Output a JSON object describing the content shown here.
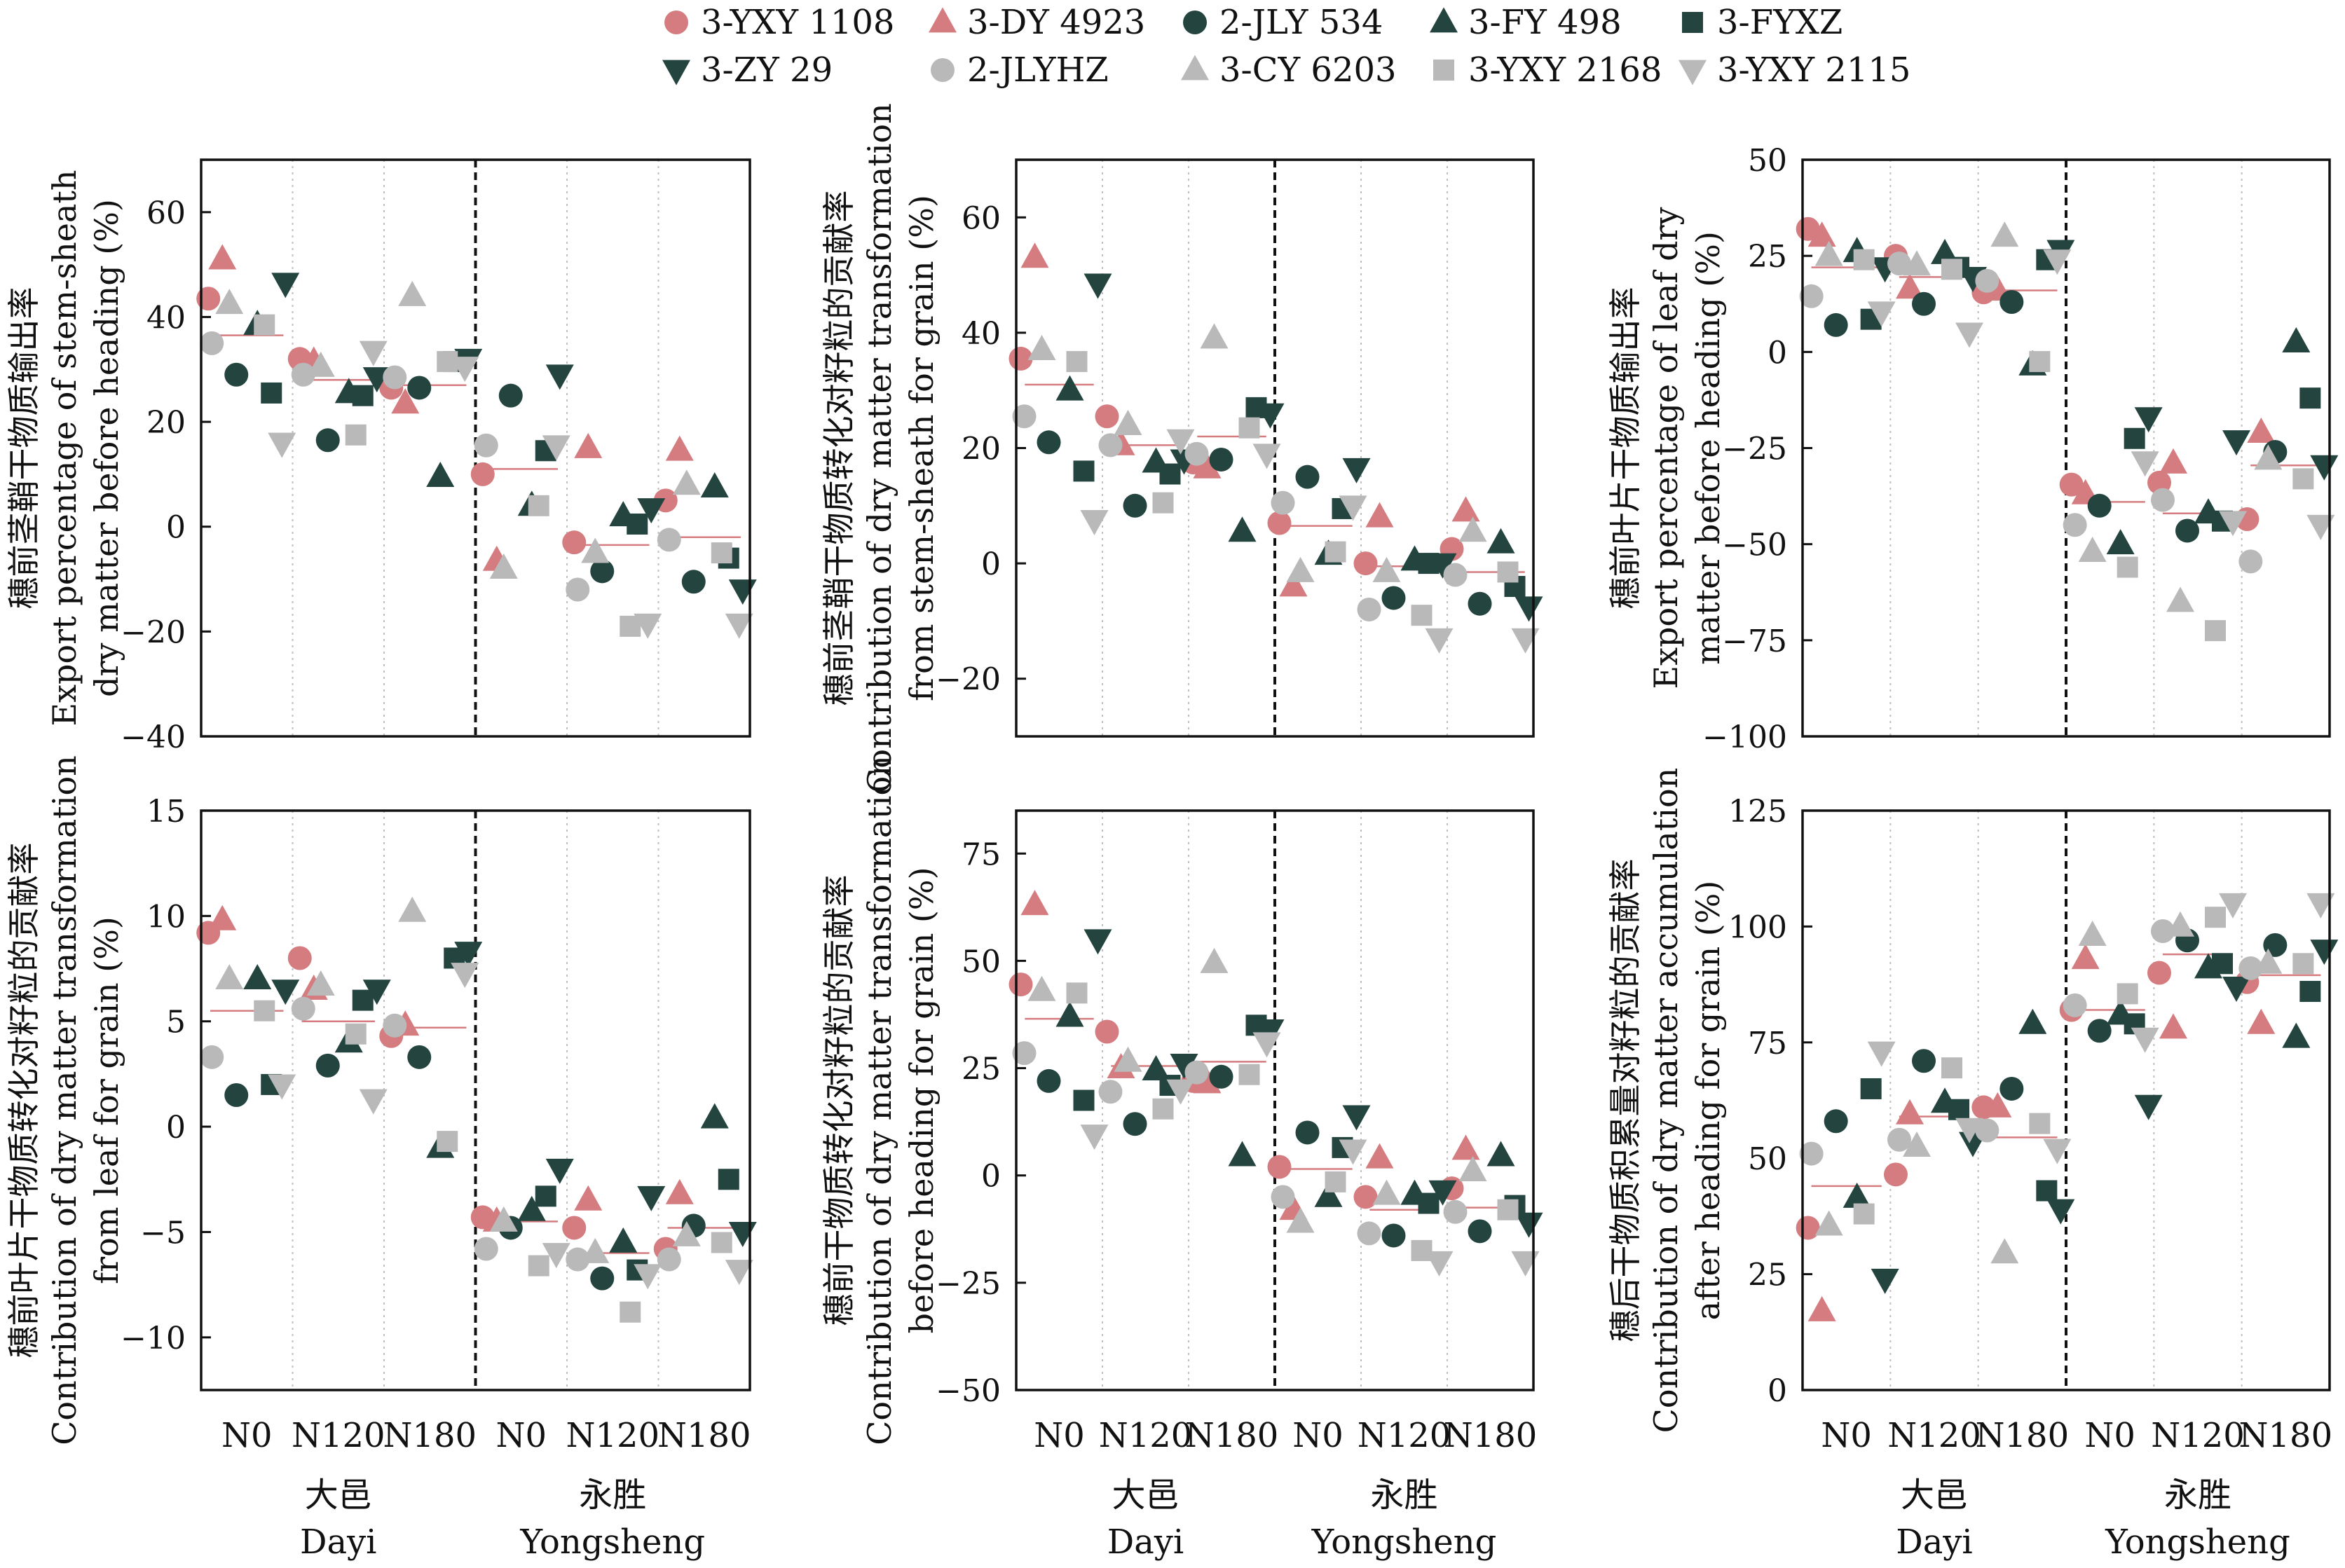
{
  "colors": {
    "pink": "#d47c7f",
    "dark": "#24443f",
    "gray": "#b9b9b9",
    "mean_line": "#d47c7f",
    "frame": "#111111",
    "grid": "#bfbfbf"
  },
  "legend": {
    "placement": "top",
    "entries": [
      {
        "name": "3-YXY 1108",
        "marker": "circle",
        "color": "pink"
      },
      {
        "name": "3-DY 4923",
        "marker": "triangle-up",
        "color": "pink"
      },
      {
        "name": "2-JLY 534",
        "marker": "circle",
        "color": "dark"
      },
      {
        "name": "3-FY 498",
        "marker": "triangle-up",
        "color": "dark"
      },
      {
        "name": "3-FYXZ",
        "marker": "square",
        "color": "dark"
      },
      {
        "name": "3-ZY 29",
        "marker": "triangle-down",
        "color": "dark"
      },
      {
        "name": "2-JLYHZ",
        "marker": "circle",
        "color": "gray"
      },
      {
        "name": "3-CY 6203",
        "marker": "triangle-up",
        "color": "gray"
      },
      {
        "name": "3-YXY 2168",
        "marker": "square",
        "color": "gray"
      },
      {
        "name": "3-YXY 2115",
        "marker": "triangle-down",
        "color": "gray"
      }
    ]
  },
  "x_axis": {
    "categories": [
      "N0",
      "N120",
      "N180",
      "N0",
      "N120",
      "N180"
    ],
    "sites": [
      {
        "cn": "大邑",
        "en": "Dayi"
      },
      {
        "cn": "永胜",
        "en": "Yongsheng"
      }
    ]
  },
  "chart_data": [
    {
      "type": "scatter",
      "ylabel_cn": "穗前茎鞘干物质输出率",
      "ylabel_en_1": "Export percentage of stem-sheath",
      "ylabel_en_2": "dry matter before heading (%)",
      "ylim": [
        -40,
        70
      ],
      "yticks": [
        -40,
        -20,
        0,
        20,
        40,
        60
      ],
      "ytick_labels": [
        "−40",
        "−20",
        "0",
        "20",
        "40",
        "60"
      ],
      "means": [
        36.5,
        28,
        27,
        11,
        -3.5,
        -2
      ],
      "series": [
        {
          "name": "3-YXY 1108",
          "values": [
            43.5,
            32,
            26.5,
            10,
            -3,
            5
          ]
        },
        {
          "name": "3-DY 4923",
          "values": [
            51,
            31.5,
            23.5,
            -6.5,
            15,
            14.5
          ]
        },
        {
          "name": "2-JLY 534",
          "values": [
            29,
            16.5,
            26.5,
            25,
            -8.5,
            -10.5
          ]
        },
        {
          "name": "3-FY 498",
          "values": [
            38.5,
            25.5,
            9.5,
            4,
            2,
            7.5
          ]
        },
        {
          "name": "3-FYXZ",
          "values": [
            25.5,
            25,
            31.5,
            14.5,
            0.5,
            -6
          ]
        },
        {
          "name": "3-ZY 29",
          "values": [
            46.5,
            28.5,
            32,
            29,
            3.5,
            -12
          ]
        },
        {
          "name": "2-JLYHZ",
          "values": [
            35,
            29,
            28.5,
            15.5,
            -12,
            -2.5
          ]
        },
        {
          "name": "3-CY 6203",
          "values": [
            42.5,
            30.5,
            44,
            -8,
            -5,
            8
          ]
        },
        {
          "name": "3-YXY 2168",
          "values": [
            38.5,
            17.5,
            31.5,
            4,
            -19,
            -5
          ]
        },
        {
          "name": "3-YXY 2115",
          "values": [
            16,
            33.5,
            30.5,
            15.5,
            -18.5,
            -18.5
          ]
        }
      ]
    },
    {
      "type": "scatter",
      "ylabel_cn": "穗前茎鞘干物质转化对籽粒的贡献率",
      "ylabel_en_1": "Contribution of dry matter transformation",
      "ylabel_en_2": "from stem-sheath for grain (%)",
      "ylim": [
        -30,
        70
      ],
      "yticks": [
        -20,
        0,
        20,
        40,
        60
      ],
      "ytick_labels": [
        "−20",
        "0",
        "20",
        "40",
        "60"
      ],
      "means": [
        31,
        20.5,
        22,
        6.5,
        -0.5,
        -1.5
      ],
      "series": [
        {
          "name": "3-YXY 1108",
          "values": [
            35.5,
            25.5,
            17.5,
            7,
            0,
            2.5
          ]
        },
        {
          "name": "3-DY 4923",
          "values": [
            53,
            20.5,
            16.5,
            -4,
            8,
            9
          ]
        },
        {
          "name": "2-JLY 534",
          "values": [
            21,
            10,
            18,
            15,
            -6,
            -7
          ]
        },
        {
          "name": "3-FY 498",
          "values": [
            30,
            17.5,
            5.5,
            1.5,
            0.5,
            3.5
          ]
        },
        {
          "name": "3-FYXZ",
          "values": [
            16,
            15.5,
            27,
            9.5,
            0,
            -4
          ]
        },
        {
          "name": "3-ZY 29",
          "values": [
            48.5,
            18,
            26,
            16.5,
            0,
            -7.5
          ]
        },
        {
          "name": "2-JLYHZ",
          "values": [
            25.5,
            20.5,
            19,
            10.5,
            -8,
            -2
          ]
        },
        {
          "name": "3-CY 6203",
          "values": [
            37,
            24,
            39,
            -1.5,
            -1.5,
            5.5
          ]
        },
        {
          "name": "3-YXY 2168",
          "values": [
            35,
            10.5,
            23.5,
            2,
            -9,
            -1.5
          ]
        },
        {
          "name": "3-YXY 2115",
          "values": [
            7.5,
            21.5,
            19,
            10,
            -13,
            -13
          ]
        }
      ]
    },
    {
      "type": "scatter",
      "ylabel_cn": "穗前叶片干物质输出率",
      "ylabel_en_1": "Export percentage of leaf dry",
      "ylabel_en_2": "matter before heading (%)",
      "ylim": [
        -100,
        50
      ],
      "yticks": [
        -100,
        -75,
        -50,
        -25,
        0,
        25,
        50
      ],
      "ytick_labels": [
        "−100",
        "−75",
        "−50",
        "−25",
        "0",
        "25",
        "50"
      ],
      "means": [
        22,
        19.5,
        16,
        -39,
        -42,
        -29.5
      ],
      "series": [
        {
          "name": "3-YXY 1108",
          "values": [
            32,
            25,
            15.5,
            -34.5,
            -34,
            -43.5
          ]
        },
        {
          "name": "3-DY 4923",
          "values": [
            30,
            16.5,
            16,
            -37,
            -29,
            -21
          ]
        },
        {
          "name": "2-JLY 534",
          "values": [
            7,
            12.5,
            13,
            -40,
            -46.5,
            -26
          ]
        },
        {
          "name": "3-FY 498",
          "values": [
            26,
            25.5,
            -3.5,
            -50,
            -42,
            2.5
          ]
        },
        {
          "name": "3-FYXZ",
          "values": [
            8.5,
            22,
            24,
            -22.5,
            -44,
            -12
          ]
        },
        {
          "name": "3-ZY 29",
          "values": [
            22,
            19.5,
            26.5,
            -17,
            -23,
            -29.5
          ]
        },
        {
          "name": "2-JLYHZ",
          "values": [
            14.5,
            23,
            18.5,
            -45,
            -38.5,
            -54.5
          ]
        },
        {
          "name": "3-CY 6203",
          "values": [
            25,
            22.5,
            30,
            -52,
            -65,
            -28
          ]
        },
        {
          "name": "3-YXY 2168",
          "values": [
            24,
            21.5,
            -2.5,
            -56,
            -72.5,
            -33
          ]
        },
        {
          "name": "3-YXY 2115",
          "values": [
            10.5,
            5,
            24,
            -28.5,
            -44,
            -45
          ]
        }
      ]
    },
    {
      "type": "scatter",
      "ylabel_cn": "穗前叶片干物质转化对籽粒的贡献率",
      "ylabel_en_1": "Contribution of dry matter transformation",
      "ylabel_en_2": "from leaf for grain (%)",
      "ylim": [
        -12.5,
        15
      ],
      "yticks": [
        -10,
        -5,
        0,
        5,
        10,
        15
      ],
      "ytick_labels": [
        "−10",
        "−5",
        "0",
        "5",
        "10",
        "15"
      ],
      "means": [
        5.5,
        5,
        4.7,
        -4.5,
        -6,
        -4.8
      ],
      "series": [
        {
          "name": "3-YXY 1108",
          "values": [
            9.2,
            8,
            4.3,
            -4.3,
            -4.8,
            -5.8
          ]
        },
        {
          "name": "3-DY 4923",
          "values": [
            9.8,
            6.5,
            4.8,
            -4.5,
            -3.5,
            -3.2
          ]
        },
        {
          "name": "2-JLY 534",
          "values": [
            1.5,
            2.9,
            3.3,
            -4.8,
            -7.2,
            -4.7
          ]
        },
        {
          "name": "3-FY 498",
          "values": [
            7,
            4,
            -1,
            -4,
            -5.5,
            0.4
          ]
        },
        {
          "name": "3-FYXZ",
          "values": [
            2,
            6,
            8,
            -3.3,
            -6.8,
            -2.5
          ]
        },
        {
          "name": "3-ZY 29",
          "values": [
            6.5,
            6.5,
            8.3,
            -2,
            -3.3,
            -5
          ]
        },
        {
          "name": "2-JLYHZ",
          "values": [
            3.3,
            5.6,
            4.8,
            -5.8,
            -6.3,
            -6.3
          ]
        },
        {
          "name": "3-CY 6203",
          "values": [
            7,
            6.7,
            10.2,
            -4.5,
            -6,
            -5.2
          ]
        },
        {
          "name": "3-YXY 2168",
          "values": [
            5.5,
            4.4,
            -0.7,
            -6.6,
            -8.8,
            -5.5
          ]
        },
        {
          "name": "3-YXY 2115",
          "values": [
            2,
            1.3,
            7.3,
            -6,
            -7,
            -6.8
          ]
        }
      ]
    },
    {
      "type": "scatter",
      "ylabel_cn": "穗前干物质转化对籽粒的贡献率",
      "ylabel_en_1": "Contribution of dry matter transformation",
      "ylabel_en_2": "before heading for grain (%)",
      "ylim": [
        -50,
        85
      ],
      "yticks": [
        -50,
        -25,
        0,
        25,
        50,
        75
      ],
      "ytick_labels": [
        "−50",
        "−25",
        "0",
        "25",
        "50",
        "75"
      ],
      "means": [
        36.5,
        25.5,
        26.5,
        1.5,
        -8,
        -7.5
      ],
      "series": [
        {
          "name": "3-YXY 1108",
          "values": [
            44.5,
            33.5,
            22,
            2,
            -5,
            -3
          ]
        },
        {
          "name": "3-DY 4923",
          "values": [
            63,
            25,
            21.5,
            -8,
            4,
            6
          ]
        },
        {
          "name": "2-JLY 534",
          "values": [
            22,
            12,
            23,
            10,
            -14,
            -13
          ]
        },
        {
          "name": "3-FY 498",
          "values": [
            37,
            24.5,
            4.5,
            -5,
            -4.5,
            4.5
          ]
        },
        {
          "name": "3-FYXZ",
          "values": [
            17.5,
            21,
            35,
            6.5,
            -6.5,
            -7
          ]
        },
        {
          "name": "3-ZY 29",
          "values": [
            55,
            26,
            34,
            14,
            -3.5,
            -11
          ]
        },
        {
          "name": "2-JLYHZ",
          "values": [
            28.5,
            19.5,
            24,
            -5,
            -13.5,
            -8.5
          ]
        },
        {
          "name": "3-CY 6203",
          "values": [
            43,
            26.5,
            49.5,
            -11,
            -4.5,
            1
          ]
        },
        {
          "name": "3-YXY 2168",
          "values": [
            42.5,
            15.5,
            23.5,
            -1.5,
            -17.5,
            -8
          ]
        },
        {
          "name": "3-YXY 2115",
          "values": [
            9.5,
            20,
            31,
            6,
            -20,
            -20
          ]
        }
      ]
    },
    {
      "type": "scatter",
      "ylabel_cn": "穗后干物质积累量对籽粒的贡献率",
      "ylabel_en_1": "Contribution of dry matter accumulation",
      "ylabel_en_2": "after heading for grain (%)",
      "ylim": [
        0,
        125
      ],
      "yticks": [
        0,
        25,
        50,
        75,
        100,
        125
      ],
      "ytick_labels": [
        "0",
        "25",
        "50",
        "75",
        "100",
        "125"
      ],
      "means": [
        44,
        59,
        54.5,
        82,
        94,
        89.5
      ],
      "series": [
        {
          "name": "3-YXY 1108",
          "values": [
            35,
            46.5,
            61,
            82,
            90,
            88
          ]
        },
        {
          "name": "3-DY 4923",
          "values": [
            17,
            59.5,
            61,
            93,
            78,
            79
          ]
        },
        {
          "name": "2-JLY 534",
          "values": [
            58,
            71,
            65,
            77.5,
            97,
            96
          ]
        },
        {
          "name": "3-FY 498",
          "values": [
            41.5,
            62,
            79,
            81,
            91,
            76
          ]
        },
        {
          "name": "3-FYXZ",
          "values": [
            65,
            60.5,
            43,
            79,
            92,
            86
          ]
        },
        {
          "name": "3-ZY 29",
          "values": [
            24,
            53.5,
            39,
            61.5,
            87,
            95
          ]
        },
        {
          "name": "2-JLYHZ",
          "values": [
            51,
            54,
            56,
            83,
            99,
            91
          ]
        },
        {
          "name": "3-CY 6203",
          "values": [
            35.5,
            52.5,
            29.5,
            98,
            100,
            92
          ]
        },
        {
          "name": "3-YXY 2168",
          "values": [
            38,
            69.5,
            57.5,
            85.5,
            102,
            92
          ]
        },
        {
          "name": "3-YXY 2115",
          "values": [
            73,
            56.5,
            52,
            76,
            105,
            105
          ]
        }
      ]
    }
  ]
}
